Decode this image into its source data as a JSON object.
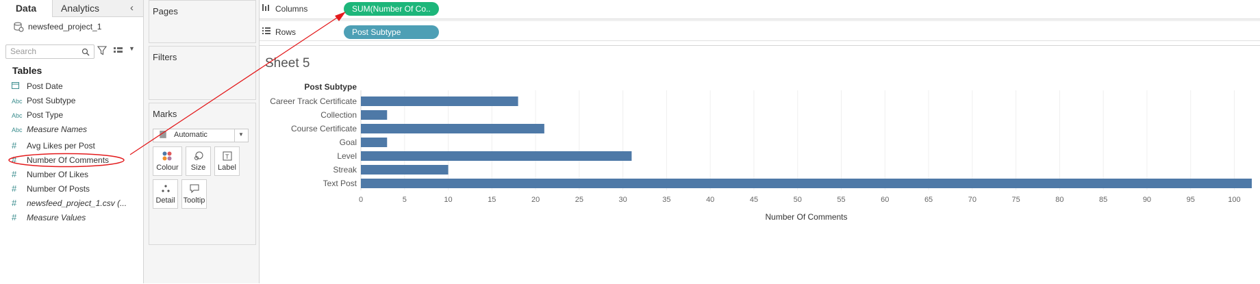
{
  "data_pane": {
    "tabs": [
      {
        "label": "Data"
      },
      {
        "label": "Analytics"
      }
    ],
    "collapse_icon": "chevron-left-icon",
    "datasource": "newsfeed_project_1",
    "search_placeholder": "Search",
    "tables_header": "Tables",
    "fields": [
      {
        "icon": "calendar-icon",
        "label": "Post Date",
        "italic": false
      },
      {
        "icon": "abc-icon",
        "label": "Post Subtype",
        "italic": false
      },
      {
        "icon": "abc-icon",
        "label": "Post Type",
        "italic": false
      },
      {
        "icon": "abc-icon",
        "label": "Measure Names",
        "italic": true
      },
      {
        "icon": "hash-icon",
        "label": "Avg Likes per Post",
        "italic": false
      },
      {
        "icon": "hash-icon",
        "label": "Number Of Comments",
        "italic": false
      },
      {
        "icon": "hash-icon",
        "label": "Number Of Likes",
        "italic": false
      },
      {
        "icon": "hash-icon",
        "label": "Number Of Posts",
        "italic": false
      },
      {
        "icon": "hash-icon",
        "label": "newsfeed_project_1.csv (...",
        "italic": true
      },
      {
        "icon": "hash-icon",
        "label": "Measure Values",
        "italic": true
      }
    ]
  },
  "cards": {
    "pages": "Pages",
    "filters": "Filters",
    "marks": "Marks",
    "mark_type": "Automatic",
    "mark_buttons": [
      "Colour",
      "Size",
      "Label",
      "Detail",
      "Tooltip"
    ]
  },
  "shelves": {
    "columns_label": "Columns",
    "columns_pill": "SUM(Number Of Co..",
    "rows_label": "Rows",
    "rows_pill": "Post Subtype"
  },
  "colors": {
    "bar": "#4e79a7",
    "measure_pill": "#1db67a",
    "dimension_pill": "#4d9fb5",
    "annotation": "#e31a1c"
  },
  "sheet_title": "Sheet 5",
  "chart_data": {
    "type": "bar",
    "orientation": "horizontal",
    "row_header": "Post Subtype",
    "categories": [
      "Career Track Certificate",
      "Collection",
      "Course Certificate",
      "Goal",
      "Level",
      "Streak",
      "Text Post"
    ],
    "values": [
      18,
      3,
      21,
      3,
      31,
      10,
      102
    ],
    "xlabel": "Number Of Comments",
    "xticks": [
      0,
      5,
      10,
      15,
      20,
      25,
      30,
      35,
      40,
      45,
      50,
      55,
      60,
      65,
      70,
      75,
      80,
      85,
      90,
      95,
      100
    ],
    "xlim": [
      0,
      102
    ],
    "grid": true
  }
}
